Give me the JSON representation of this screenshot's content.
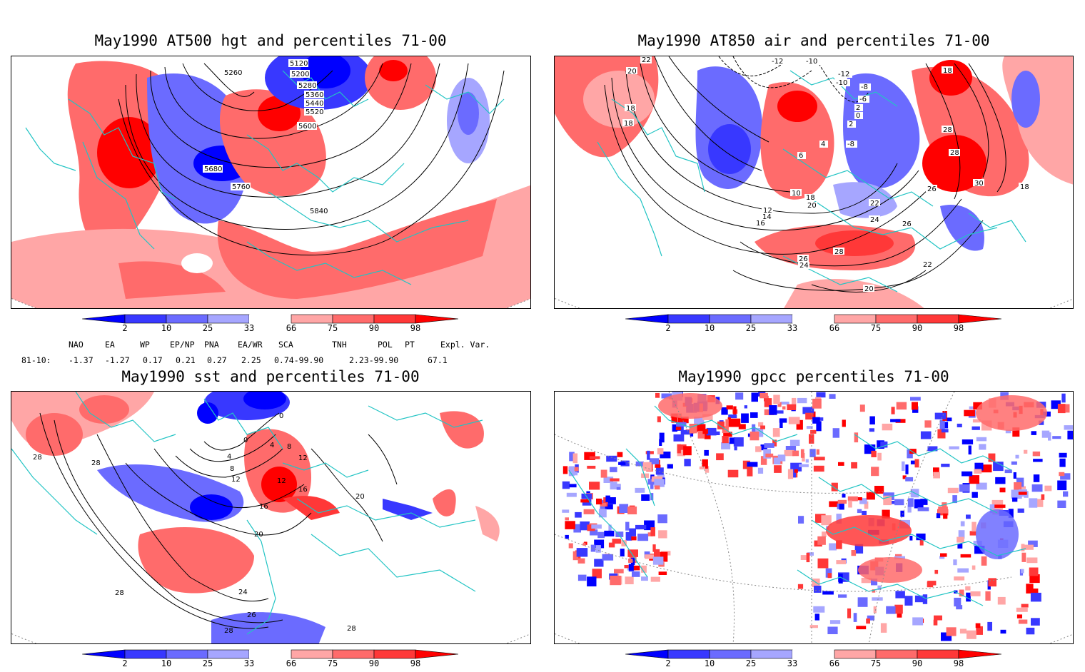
{
  "panels": [
    {
      "title": "May1990 AT500 hgt and percentiles 71-00",
      "contour_labels": [
        "5120",
        "5200",
        "5260",
        "5280",
        "5360",
        "5440",
        "5520",
        "5600",
        "5680",
        "5760",
        "5840"
      ]
    },
    {
      "title": "May1990 AT850 air and percentiles 71-00",
      "contour_labels": [
        "22",
        "20",
        "18",
        "18",
        "-12",
        "-10",
        "-12",
        "-10",
        "-8",
        "-6",
        "2",
        "0",
        "2",
        "4",
        "6",
        "-8",
        "10",
        "12",
        "14",
        "16",
        "18",
        "20",
        "22",
        "24",
        "28",
        "26",
        "24",
        "22",
        "20",
        "18",
        "28",
        "28",
        "30",
        "26",
        "26",
        "18"
      ]
    },
    {
      "title": "May1990 sst and percentiles 71-00",
      "contour_labels": [
        "28",
        "28",
        "0",
        "0",
        "4",
        "4",
        "8",
        "8",
        "12",
        "12",
        "12",
        "16",
        "16",
        "20",
        "20",
        "24",
        "26",
        "28",
        "28",
        "28"
      ]
    },
    {
      "title": "May1990 gpcc percentiles 71-00",
      "contour_labels": []
    }
  ],
  "colorbar": {
    "labels": [
      "2",
      "10",
      "25",
      "33",
      "66",
      "75",
      "90",
      "98"
    ],
    "colors": [
      "#0000ff",
      "#3838ff",
      "#6b6bff",
      "#a6a6ff",
      "#ffffff",
      "#ffa6a6",
      "#ff6b6b",
      "#ff3838",
      "#ff0000"
    ]
  },
  "indices": {
    "headers": [
      "NAO",
      "EA",
      "WP",
      "EP/NP",
      "PNA",
      "EA/WR",
      "SCA",
      "TNH",
      "POL",
      "PT",
      "Expl. Var."
    ],
    "row_label": "81-10:",
    "values": [
      "-1.37",
      "-1.27",
      "0.17",
      "0.21",
      "0.27",
      "2.25",
      "0.74-99.90",
      "2.23-99.90",
      "67.1"
    ]
  },
  "colors": {
    "coast": "#22c4c4",
    "warm": "#ff4040",
    "warm_light": "#ffa6a6",
    "cold": "#3838ff",
    "cold_light": "#a6a6ff"
  }
}
